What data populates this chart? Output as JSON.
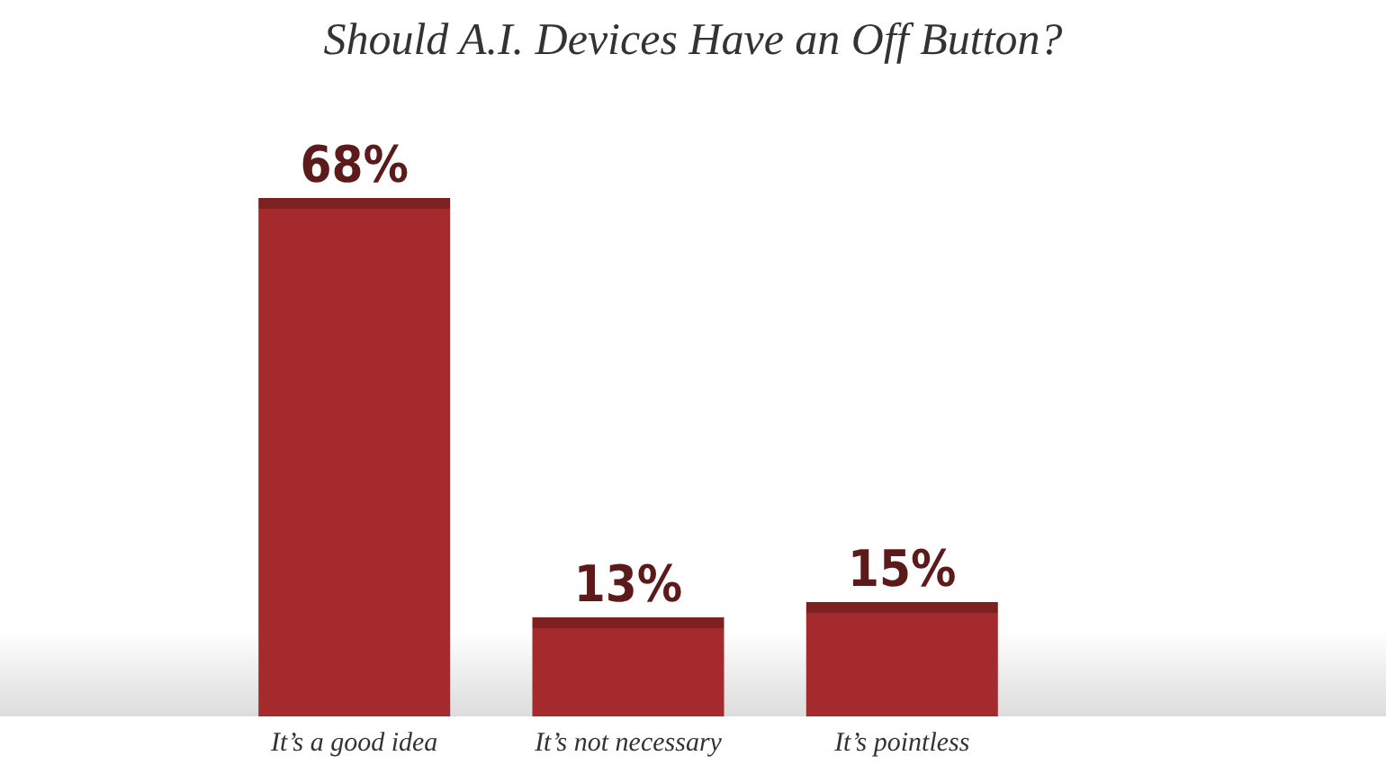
{
  "chart_data": {
    "type": "bar",
    "title": "Should A.I. Devices Have an Off Button?",
    "categories": [
      "It’s a good idea",
      "It’s not necessary",
      "It’s pointless"
    ],
    "values": [
      68,
      13,
      15
    ],
    "value_labels": [
      "68%",
      "13%",
      "15%"
    ],
    "color": "#a52a2d",
    "grid": false
  }
}
